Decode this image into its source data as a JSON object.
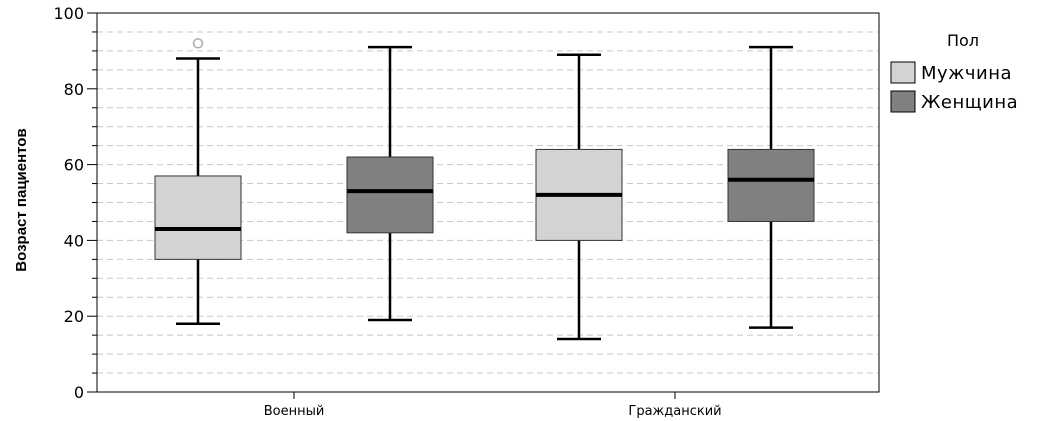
{
  "chart_data": {
    "type": "boxplot",
    "ylabel": "Возраст пациентов",
    "xlabel": "",
    "ylim": [
      0,
      100
    ],
    "yticks": [
      0,
      20,
      40,
      60,
      80,
      100
    ],
    "y_minor_step": 5,
    "grid": true,
    "categories": [
      "Военный",
      "Гражданский"
    ],
    "legend": {
      "title": "Пол",
      "placement": "right"
    },
    "series": [
      {
        "name": "Мужчина",
        "color": "#d3d3d3",
        "boxes": [
          {
            "category": "Военный",
            "whisker_low": 18,
            "q1": 35,
            "median": 43,
            "q3": 57,
            "whisker_high": 88,
            "outliers": [
              92
            ]
          },
          {
            "category": "Гражданский",
            "whisker_low": 14,
            "q1": 40,
            "median": 52,
            "q3": 64,
            "whisker_high": 89,
            "outliers": []
          }
        ]
      },
      {
        "name": "Женщина",
        "color": "#808080",
        "boxes": [
          {
            "category": "Военный",
            "whisker_low": 19,
            "q1": 42,
            "median": 53,
            "q3": 62,
            "whisker_high": 91,
            "outliers": []
          },
          {
            "category": "Гражданский",
            "whisker_low": 17,
            "q1": 45,
            "median": 56,
            "q3": 64,
            "whisker_high": 91,
            "outliers": []
          }
        ]
      }
    ]
  }
}
